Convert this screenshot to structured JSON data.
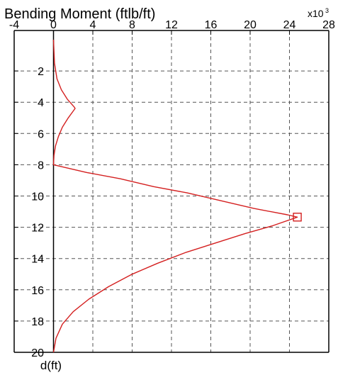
{
  "chart_data": {
    "type": "line",
    "title": "Bending Moment (ftlb/ft)",
    "x_multiplier_label": "x10",
    "x_multiplier_exponent": "3",
    "xlabel": "",
    "ylabel": "d(ft)",
    "xlim": [
      -4,
      28
    ],
    "ylim": [
      0,
      20
    ],
    "y_inverted": true,
    "x_ticks": [
      -4,
      0,
      4,
      8,
      12,
      16,
      20,
      24,
      28
    ],
    "y_ticks": [
      2,
      4,
      6,
      8,
      10,
      12,
      14,
      16,
      18,
      20
    ],
    "grid": true,
    "line_color": "#d42020",
    "series": [
      {
        "x": [
          0,
          0.1,
          0.35,
          0.8,
          1.4,
          2.1,
          2.2,
          1.5,
          0.9,
          0.5,
          0.2,
          0.05,
          0,
          3.4,
          6.8,
          10.2,
          13.6,
          17.0,
          20.4,
          23.8,
          24.8,
          22.3,
          19.5,
          16.5,
          13.5,
          10.6,
          8.0,
          5.6,
          3.6,
          2.0,
          0.9,
          0.25,
          0
        ],
        "y": [
          0,
          1.5,
          2.5,
          3.2,
          3.8,
          4.3,
          4.4,
          5.0,
          5.6,
          6.2,
          6.8,
          7.4,
          8.0,
          8.5,
          8.9,
          9.4,
          9.8,
          10.3,
          10.8,
          11.2,
          11.35,
          11.9,
          12.4,
          13.0,
          13.6,
          14.3,
          15.0,
          15.8,
          16.6,
          17.4,
          18.2,
          19.1,
          20.0
        ]
      }
    ],
    "max_marker": {
      "x": 24.8,
      "y": 11.35
    }
  }
}
